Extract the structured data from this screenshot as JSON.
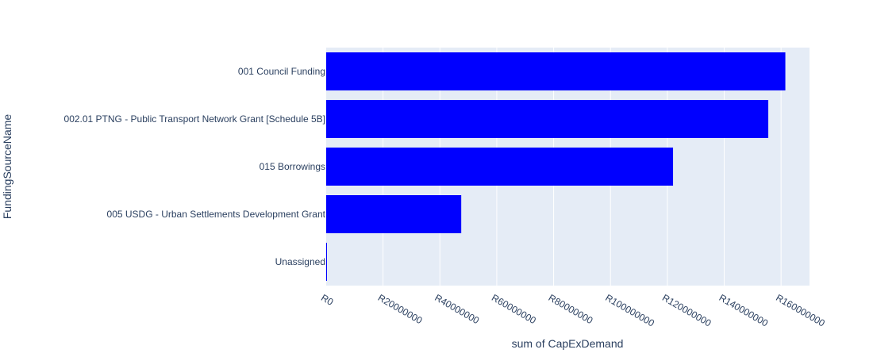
{
  "chart_data": {
    "type": "bar",
    "orientation": "horizontal",
    "title": "",
    "xlabel": "sum of CapExDemand",
    "ylabel": "FundingSourceName",
    "categories": [
      "Unassigned",
      "005 USDG - Urban Settlements Development Grant",
      "015 Borrowings",
      "002.01 PTNG - Public Transport Network Grant [Schedule 5B]",
      "001 Council Funding"
    ],
    "values": [
      150000,
      47500000,
      122000000,
      155500000,
      161500000
    ],
    "xlim": [
      0,
      170000000
    ],
    "xticks": [
      0,
      20000000,
      40000000,
      60000000,
      80000000,
      100000000,
      120000000,
      140000000,
      160000000
    ],
    "xtick_labels": [
      "R0",
      "R20000000",
      "R40000000",
      "R60000000",
      "R80000000",
      "R100000000",
      "R120000000",
      "R140000000",
      "R160000000"
    ],
    "grid": true,
    "legend": "none",
    "colors": {
      "bar": "#0000ff",
      "plot_bg": "#e5ecf6",
      "grid": "#ffffff",
      "text": "#2a3f5f"
    }
  }
}
